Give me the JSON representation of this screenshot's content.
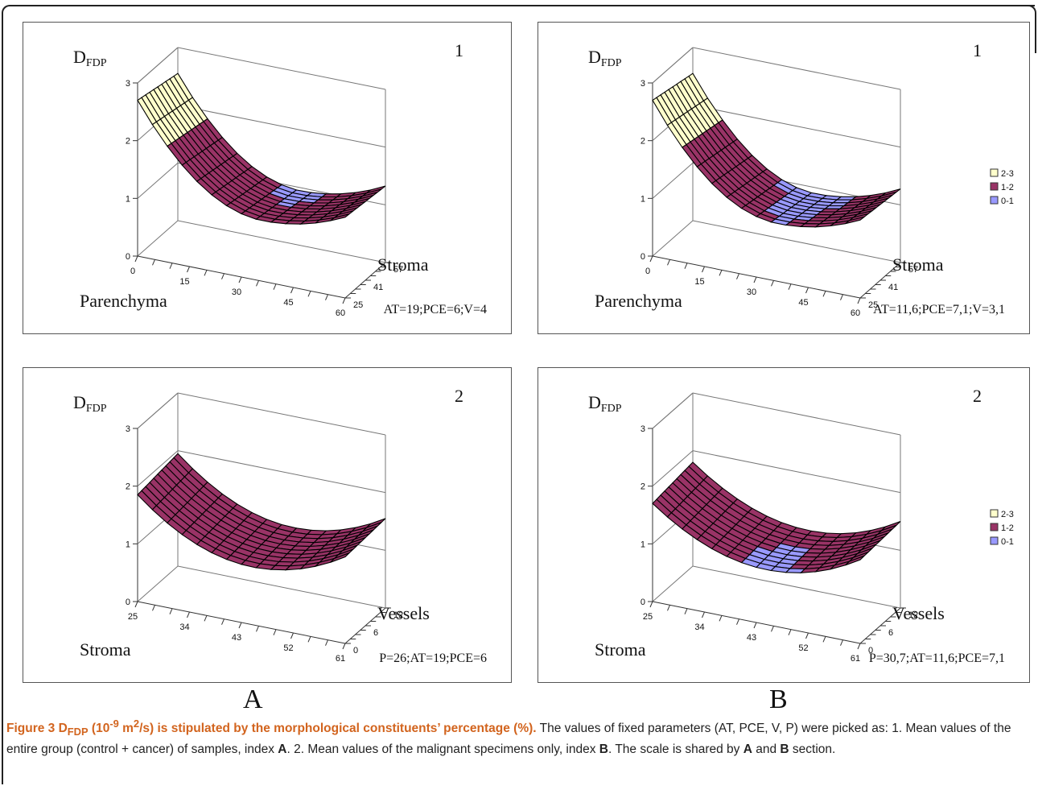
{
  "chart_data": [
    {
      "type": "surface",
      "section": "A",
      "panel_number": "1",
      "zlabel_main": "D",
      "zlabel_sub": "FDP",
      "xlabel": "Parenchyma",
      "ylabel": "Stroma",
      "x_ticks": [
        "0",
        "15",
        "30",
        "45",
        "60"
      ],
      "y_ticks": [
        "25",
        "41",
        "57"
      ],
      "z_ticks": [
        "0",
        "1",
        "2",
        "3"
      ],
      "zlim": [
        0,
        3
      ],
      "params_text": "AT=19;PCE=6;V=4",
      "surface": {
        "start": 2.7,
        "min": 1.05,
        "end": 1.4,
        "dip": 0.6,
        "yslope": -0.15
      },
      "legend": false
    },
    {
      "type": "surface",
      "section": "B",
      "panel_number": "1",
      "zlabel_main": "D",
      "zlabel_sub": "FDP",
      "xlabel": "Parenchyma",
      "ylabel": "Stroma",
      "x_ticks": [
        "0",
        "15",
        "30",
        "45",
        "60"
      ],
      "y_ticks": [
        "25",
        "41",
        "57"
      ],
      "z_ticks": [
        "0",
        "1",
        "2",
        "3"
      ],
      "zlim": [
        0,
        3
      ],
      "params_text": "AT=11,6;PCE=7,1;V=3,1",
      "surface": {
        "start": 2.7,
        "min": 1.0,
        "end": 1.35,
        "dip": 0.6,
        "yslope": -0.15
      },
      "legend": true
    },
    {
      "type": "surface",
      "section": "A",
      "panel_number": "2",
      "zlabel_main": "D",
      "zlabel_sub": "FDP",
      "xlabel": "Stroma",
      "ylabel": "Vessels",
      "x_ticks": [
        "25",
        "34",
        "43",
        "52",
        "61"
      ],
      "y_ticks": [
        "0",
        "6",
        "12"
      ],
      "z_ticks": [
        "0",
        "1",
        "2",
        "3"
      ],
      "zlim": [
        0,
        3
      ],
      "params_text": "P=26;AT=19;PCE=6",
      "surface": {
        "start": 1.85,
        "min": 1.0,
        "end": 1.5,
        "dip": 0.55,
        "yslope": 0.1
      },
      "legend": false
    },
    {
      "type": "surface",
      "section": "B",
      "panel_number": "2",
      "zlabel_main": "D",
      "zlabel_sub": "FDP",
      "xlabel": "Stroma",
      "ylabel": "Vessels",
      "x_ticks": [
        "25",
        "34",
        "43",
        "52",
        "61"
      ],
      "y_ticks": [
        "0",
        "6",
        "12"
      ],
      "z_ticks": [
        "0",
        "1",
        "2",
        "3"
      ],
      "zlim": [
        0,
        3
      ],
      "params_text": "P=30,7;AT=11,6;PCE=7,1",
      "surface": {
        "start": 1.7,
        "min": 0.95,
        "end": 1.45,
        "dip": 0.55,
        "yslope": 0.1
      },
      "legend": true
    }
  ],
  "legend": {
    "items": [
      {
        "label": "2-3",
        "color": "#ffffcc"
      },
      {
        "label": "1-2",
        "color": "#993366"
      },
      {
        "label": "0-1",
        "color": "#9999ff"
      }
    ]
  },
  "sections": {
    "a": "A",
    "b": "B"
  },
  "caption": {
    "fig_label": "Figure 3 D",
    "fig_sub1": "FDP",
    "fig_mid": " (10",
    "fig_sup1": "-9",
    "fig_mid2": " m",
    "fig_sup2": "2",
    "fig_end": "/s) is stipulated by the morphological constituents’ percentage (%).",
    "text1": " The values of fixed parameters (AT, PCE, V, P) were picked as: 1. Mean values of the entire group (control + cancer) of samples, index ",
    "idxA": "A",
    "text2": ". 2. Mean values of the malignant specimens only, index ",
    "idxB": "B",
    "text3": ". The scale is shared by ",
    "idxA2": "A",
    "text4": " and ",
    "idxB2": "B",
    "text5": " section."
  }
}
